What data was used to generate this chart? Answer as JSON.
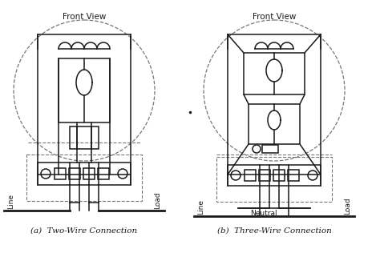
{
  "bg_color": "#ffffff",
  "line_color": "#1a1a1a",
  "dash_color": "#777777",
  "title_a": "Front View",
  "title_b": "Front View",
  "label_a": "(a)  Two-Wire Connection",
  "label_b": "(b)  Three-Wire Connection",
  "line_label": "Line",
  "load_label": "Load",
  "neutral_label": "Neutral",
  "fig_width": 4.74,
  "fig_height": 3.46,
  "dpi": 100
}
